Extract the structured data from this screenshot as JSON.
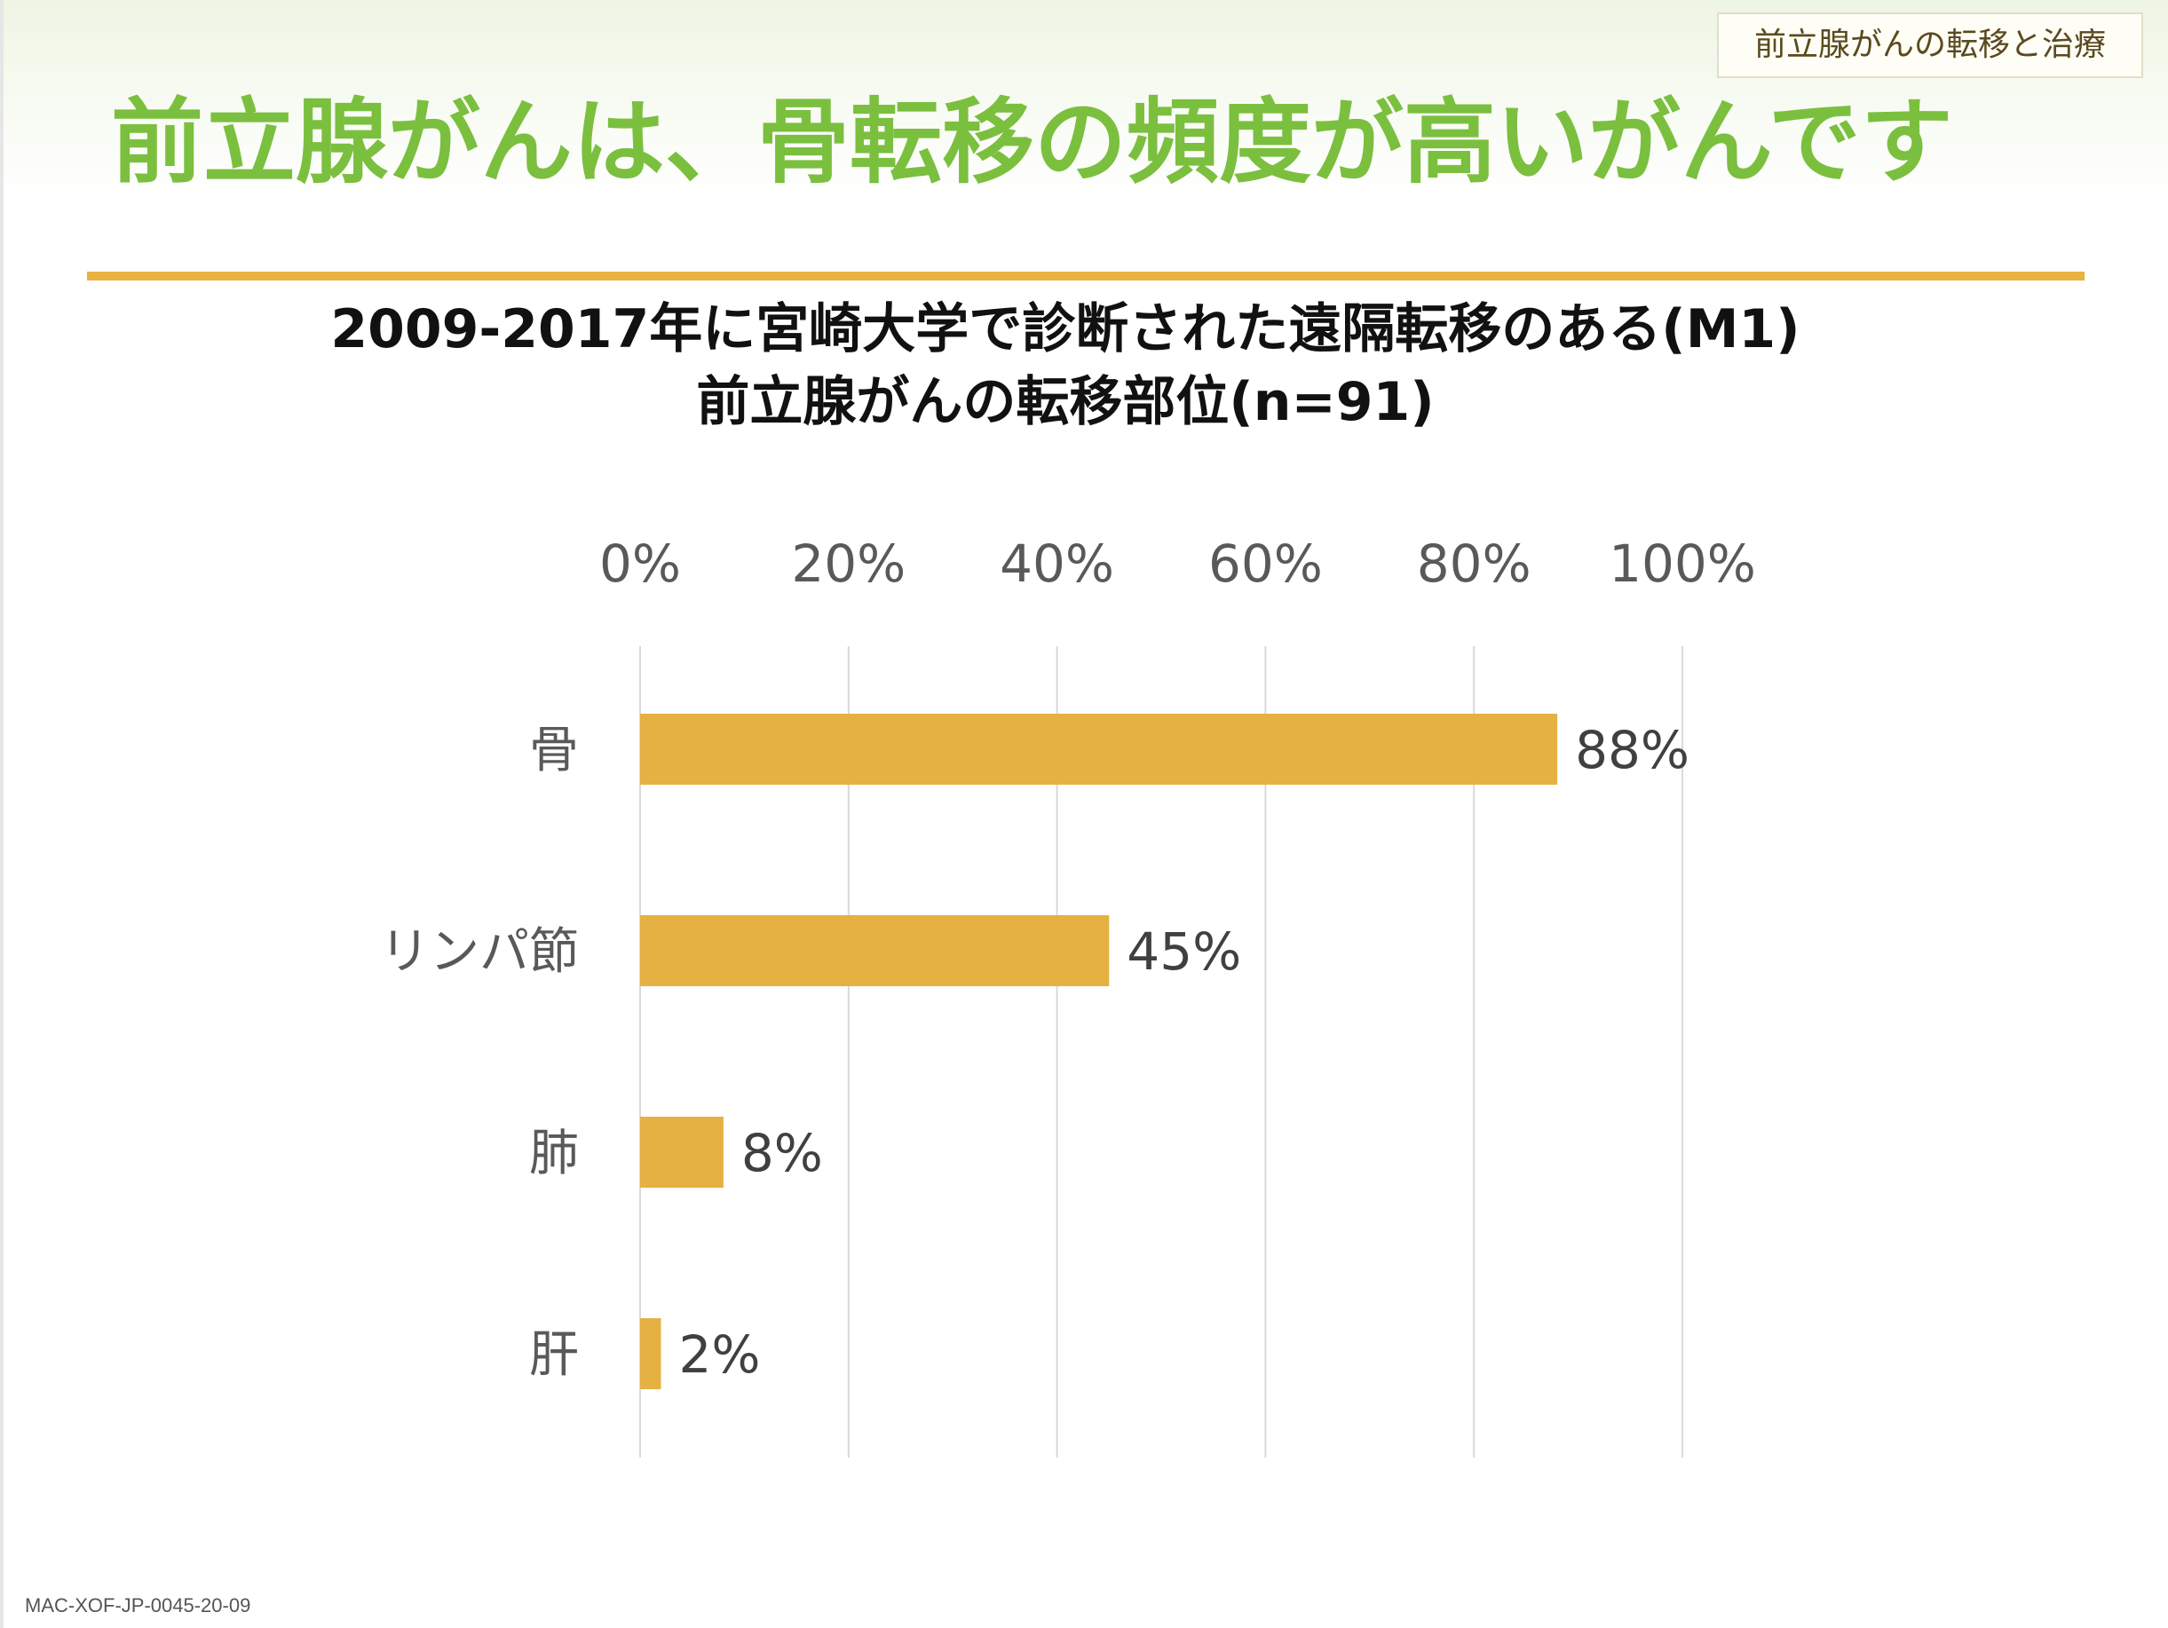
{
  "tag": "前立腺がんの転移と治療",
  "title": "前立腺がんは、骨転移の頻度が高いがんです",
  "footer": "MAC-XOF-JP-0045-20-09",
  "colors": {
    "title": "#7bbf3f",
    "rule": "#e8b341",
    "bar": "#e5b142",
    "grid": "#d9d9d9"
  },
  "chart_data": {
    "type": "bar",
    "orientation": "horizontal",
    "title": "2009-2017年に宮崎大学で診断された遠隔転移のある(M1)",
    "subtitle": "前立腺がんの転移部位(n=91)",
    "categories": [
      "骨",
      "リンパ節",
      "肺",
      "肝"
    ],
    "values": [
      88,
      45,
      8,
      2
    ],
    "data_labels": [
      "88%",
      "45%",
      "8%",
      "2%"
    ],
    "x_ticks": [
      "0%",
      "20%",
      "40%",
      "60%",
      "80%",
      "100%"
    ],
    "xlim": [
      0,
      100
    ],
    "x_axis_position": "top",
    "grid": true
  }
}
